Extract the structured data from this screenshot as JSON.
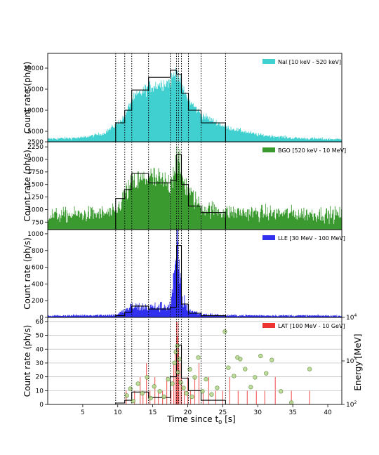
{
  "figure": {
    "x_label_main": "Time since t",
    "x_label_sub": "0",
    "x_label_unit": " [s]",
    "right_axis_label": "Energy [MeV]"
  },
  "chart_data": {
    "type": "area",
    "xlim": [
      0,
      42
    ],
    "xticks": [
      5,
      10,
      15,
      20,
      25,
      30,
      35,
      40
    ],
    "interval_boundaries": [
      9.7,
      11.0,
      12.0,
      14.4,
      17.5,
      18.4,
      18.7,
      19.1,
      20.1,
      21.9,
      25.4
    ],
    "panels": [
      {
        "name": "nai",
        "legend": "NaI [10 keV - 520 keV]",
        "color": "#40d0d0",
        "ylabel": "Count rate (ph/s)",
        "ylim": [
          2500,
          23500
        ],
        "yticks": [
          2500,
          5000,
          10000,
          15000,
          20000
        ],
        "profile": [
          [
            0,
            3200
          ],
          [
            5,
            3500
          ],
          [
            8,
            4500
          ],
          [
            9.7,
            6500
          ],
          [
            11,
            8500
          ],
          [
            12,
            12500
          ],
          [
            14.4,
            15500
          ],
          [
            17.5,
            16800
          ],
          [
            18.4,
            19500
          ],
          [
            19.1,
            15500
          ],
          [
            20.1,
            12500
          ],
          [
            21.9,
            9000
          ],
          [
            25.4,
            6000
          ],
          [
            30,
            4200
          ],
          [
            35,
            3400
          ],
          [
            42,
            3100
          ]
        ],
        "noise": 0.07,
        "steps": [
          {
            "x0": 9.7,
            "x1": 11.0,
            "y": 7000
          },
          {
            "x0": 11.0,
            "x1": 12.0,
            "y": 10000
          },
          {
            "x0": 12.0,
            "x1": 14.4,
            "y": 14800
          },
          {
            "x0": 14.4,
            "x1": 17.5,
            "y": 17800
          },
          {
            "x0": 17.5,
            "x1": 18.4,
            "y": 19500
          },
          {
            "x0": 18.4,
            "x1": 19.1,
            "y": 18500
          },
          {
            "x0": 19.1,
            "x1": 20.1,
            "y": 14000
          },
          {
            "x0": 20.1,
            "x1": 21.9,
            "y": 10000
          },
          {
            "x0": 21.9,
            "x1": 25.4,
            "y": 7000
          }
        ]
      },
      {
        "name": "bgo",
        "legend": "BGO [520 keV - 10 MeV]",
        "color": "#3a9a30",
        "ylabel": "Count rate (ph/s)",
        "ylim": [
          600,
          2350
        ],
        "yticks": [
          750,
          1000,
          1250,
          1500,
          1750,
          2000,
          2250
        ],
        "profile": [
          [
            0,
            880
          ],
          [
            9.7,
            930
          ],
          [
            11,
            1300
          ],
          [
            12,
            1500
          ],
          [
            14.4,
            1650
          ],
          [
            17.5,
            1500
          ],
          [
            18.4,
            2050
          ],
          [
            19.1,
            1700
          ],
          [
            20.1,
            1350
          ],
          [
            21.9,
            1050
          ],
          [
            25.4,
            950
          ],
          [
            42,
            900
          ]
        ],
        "noise": 0.12,
        "steps": [
          {
            "x0": 9.7,
            "x1": 11.0,
            "y": 1220
          },
          {
            "x0": 11.0,
            "x1": 12.0,
            "y": 1400
          },
          {
            "x0": 12.0,
            "x1": 14.4,
            "y": 1720
          },
          {
            "x0": 14.4,
            "x1": 17.5,
            "y": 1530
          },
          {
            "x0": 17.5,
            "x1": 18.4,
            "y": 1580
          },
          {
            "x0": 18.4,
            "x1": 19.1,
            "y": 2100
          },
          {
            "x0": 19.1,
            "x1": 20.1,
            "y": 1500
          },
          {
            "x0": 20.1,
            "x1": 21.9,
            "y": 1070
          },
          {
            "x0": 21.9,
            "x1": 25.4,
            "y": 940
          }
        ]
      },
      {
        "name": "lle",
        "legend": "LLE [30 MeV - 100 MeV]",
        "color": "#3030ee",
        "ylabel": "Count rate (ph/s)",
        "ylim": [
          0,
          1050
        ],
        "yticks": [
          0,
          200,
          400,
          600,
          800,
          1000
        ],
        "profile": [
          [
            0,
            20
          ],
          [
            9.7,
            30
          ],
          [
            11,
            80
          ],
          [
            12,
            130
          ],
          [
            14.4,
            120
          ],
          [
            17.5,
            140
          ],
          [
            18.3,
            600
          ],
          [
            18.5,
            900
          ],
          [
            18.8,
            600
          ],
          [
            19.1,
            250
          ],
          [
            20.1,
            90
          ],
          [
            21.9,
            40
          ],
          [
            25.4,
            25
          ],
          [
            42,
            20
          ]
        ],
        "noise": 0.35,
        "steps": [
          {
            "x0": 9.7,
            "x1": 11.0,
            "y": 20
          },
          {
            "x0": 11.0,
            "x1": 12.0,
            "y": 60
          },
          {
            "x0": 12.0,
            "x1": 14.4,
            "y": 135
          },
          {
            "x0": 14.4,
            "x1": 17.5,
            "y": 100
          },
          {
            "x0": 17.5,
            "x1": 18.4,
            "y": 120
          },
          {
            "x0": 18.4,
            "x1": 19.1,
            "y": 860
          },
          {
            "x0": 19.1,
            "x1": 20.1,
            "y": 160
          },
          {
            "x0": 20.1,
            "x1": 21.9,
            "y": 50
          },
          {
            "x0": 21.9,
            "x1": 25.4,
            "y": 20
          }
        ]
      },
      {
        "name": "lat",
        "legend": "LAT [100 MeV - 10 GeV]",
        "color": "#ee3333",
        "ylabel": "Count rate (ph/s)",
        "ylim": [
          0,
          63
        ],
        "yticks": [
          0,
          10,
          20,
          30,
          40,
          50,
          60
        ],
        "right_ylim_log": [
          100,
          10000
        ],
        "right_yticks": [
          {
            "value": 100,
            "base": "10",
            "exp": "2"
          },
          {
            "value": 1000,
            "base": "10",
            "exp": "3"
          },
          {
            "value": 10000,
            "base": "10",
            "exp": "4"
          }
        ],
        "bars": [
          [
            11.2,
            10
          ],
          [
            12.4,
            10
          ],
          [
            13.2,
            20
          ],
          [
            13.6,
            10
          ],
          [
            14.1,
            30
          ],
          [
            14.6,
            10
          ],
          [
            15.3,
            20
          ],
          [
            15.8,
            10
          ],
          [
            16.4,
            10
          ],
          [
            17.0,
            20
          ],
          [
            17.6,
            10
          ],
          [
            18.0,
            30
          ],
          [
            18.2,
            40
          ],
          [
            18.4,
            60
          ],
          [
            18.5,
            50
          ],
          [
            18.6,
            60
          ],
          [
            18.7,
            40
          ],
          [
            18.9,
            30
          ],
          [
            19.1,
            20
          ],
          [
            19.5,
            10
          ],
          [
            20.0,
            20
          ],
          [
            20.4,
            10
          ],
          [
            21.0,
            20
          ],
          [
            21.6,
            30
          ],
          [
            22.2,
            10
          ],
          [
            23.0,
            20
          ],
          [
            24.0,
            10
          ],
          [
            25.0,
            10
          ],
          [
            26.0,
            20
          ],
          [
            27.2,
            10
          ],
          [
            28.5,
            10
          ],
          [
            29.8,
            10
          ],
          [
            31.0,
            10
          ],
          [
            32.5,
            20
          ],
          [
            34.8,
            10
          ],
          [
            37.4,
            10
          ]
        ],
        "steps": [
          {
            "x0": 9.7,
            "x1": 11.0,
            "y": 1
          },
          {
            "x0": 11.0,
            "x1": 12.0,
            "y": 3
          },
          {
            "x0": 12.0,
            "x1": 14.4,
            "y": 9
          },
          {
            "x0": 14.4,
            "x1": 17.5,
            "y": 5
          },
          {
            "x0": 17.5,
            "x1": 18.4,
            "y": 20
          },
          {
            "x0": 18.4,
            "x1": 19.1,
            "y": 43
          },
          {
            "x0": 19.1,
            "x1": 20.1,
            "y": 19
          },
          {
            "x0": 20.1,
            "x1": 21.9,
            "y": 10
          },
          {
            "x0": 21.9,
            "x1": 25.4,
            "y": 3
          }
        ],
        "photons": [
          [
            11.3,
            160
          ],
          [
            11.8,
            230
          ],
          [
            12.2,
            120
          ],
          [
            12.9,
            300
          ],
          [
            13.5,
            180
          ],
          [
            14.2,
            420
          ],
          [
            14.7,
            140
          ],
          [
            15.2,
            260
          ],
          [
            16.0,
            200
          ],
          [
            16.6,
            150
          ],
          [
            17.2,
            380
          ],
          [
            17.8,
            300
          ],
          [
            18.1,
            900
          ],
          [
            18.3,
            1600
          ],
          [
            18.5,
            2200
          ],
          [
            18.6,
            550
          ],
          [
            18.8,
            1100
          ],
          [
            19.0,
            320
          ],
          [
            19.4,
            240
          ],
          [
            19.8,
            180
          ],
          [
            20.3,
            640
          ],
          [
            20.6,
            150
          ],
          [
            21.0,
            420
          ],
          [
            21.5,
            1200
          ],
          [
            22.1,
            200
          ],
          [
            22.6,
            380
          ],
          [
            23.4,
            170
          ],
          [
            24.2,
            240
          ],
          [
            25.3,
            4700
          ],
          [
            25.8,
            700
          ],
          [
            26.6,
            450
          ],
          [
            27.1,
            1200
          ],
          [
            27.5,
            1100
          ],
          [
            28.2,
            650
          ],
          [
            29.0,
            250
          ],
          [
            29.6,
            420
          ],
          [
            30.4,
            1300
          ],
          [
            31.2,
            520
          ],
          [
            32.0,
            1050
          ],
          [
            33.3,
            200
          ],
          [
            34.8,
            110
          ],
          [
            37.4,
            650
          ]
        ]
      }
    ]
  }
}
